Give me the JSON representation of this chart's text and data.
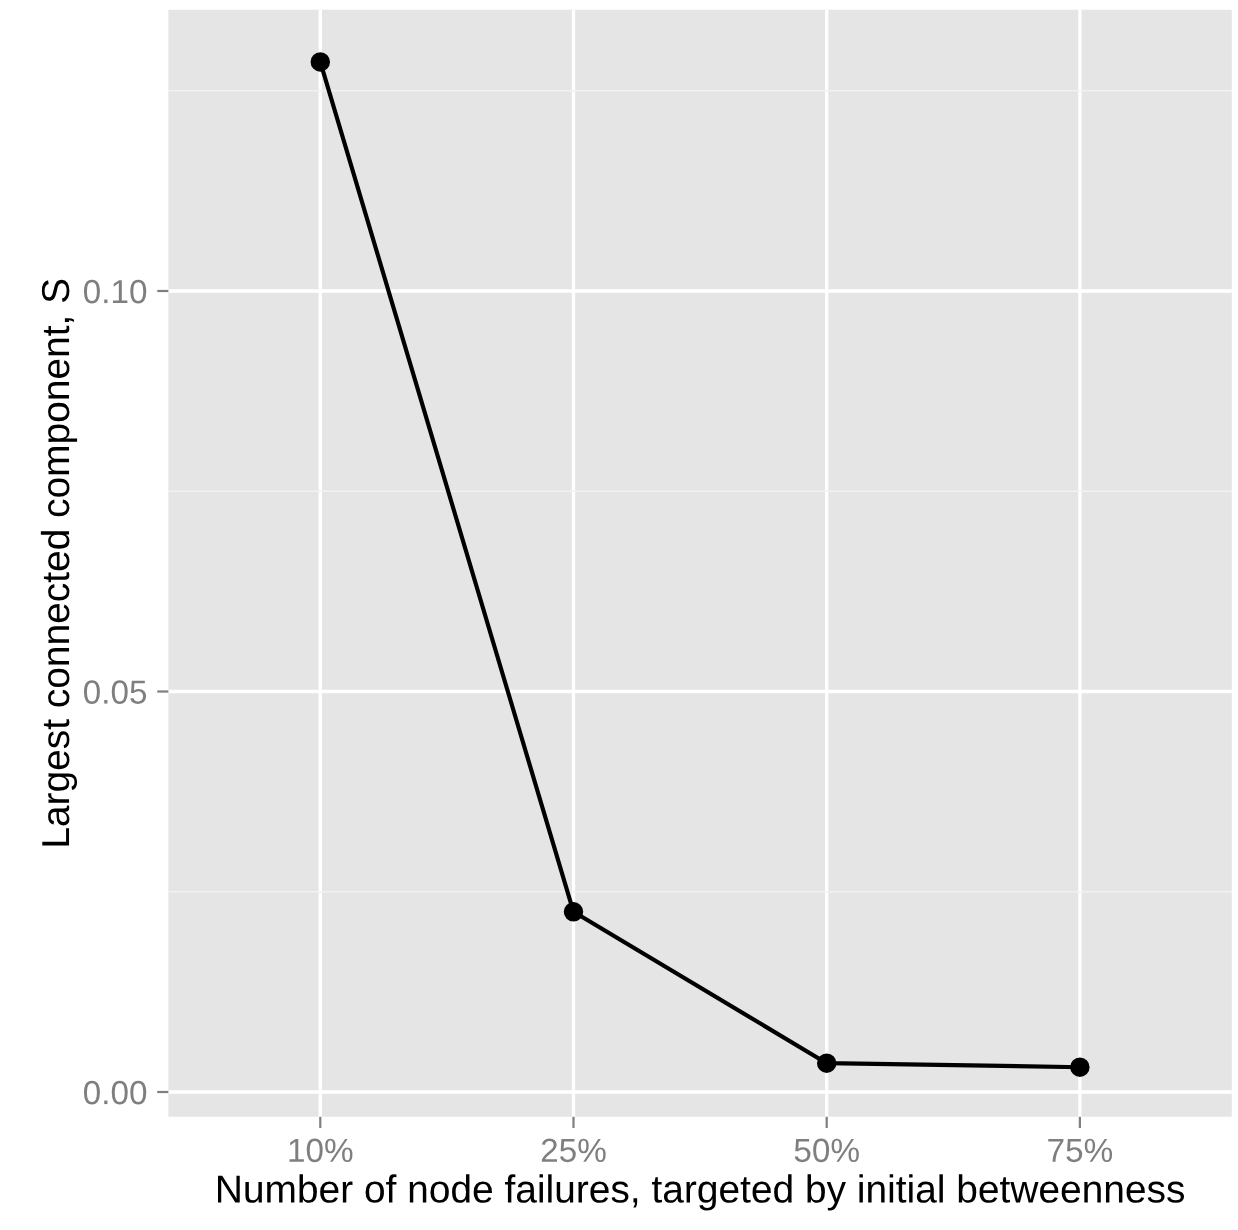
{
  "chart_data": {
    "type": "line",
    "xlabel": "Number of node failures, targeted by initial betweenness",
    "ylabel": "Largest connected component, S",
    "categories": [
      "10%",
      "25%",
      "50%",
      "75%"
    ],
    "series": [
      {
        "color": "#000000",
        "values": [
          0.1286,
          0.0225,
          0.0036,
          0.0031
        ]
      }
    ],
    "ylim": [
      -0.0031,
      0.1351
    ],
    "yticks": [
      {
        "value": 0,
        "label": "0.00"
      },
      {
        "value": 0.05,
        "label": "0.05"
      },
      {
        "value": 0.1,
        "label": "0.10"
      }
    ],
    "marker": "circle",
    "line_style": "solid",
    "grid": true
  }
}
